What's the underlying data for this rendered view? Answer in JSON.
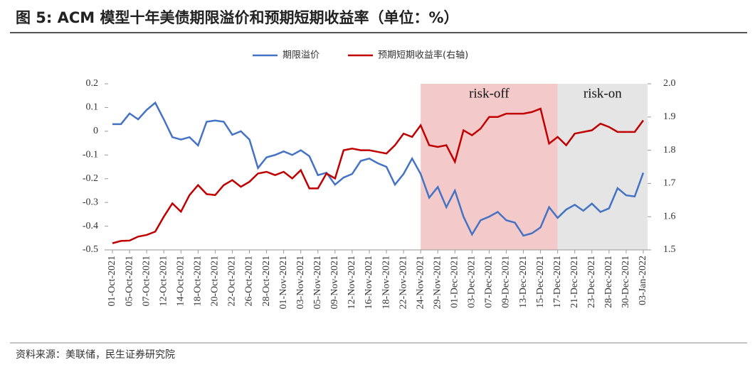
{
  "chart_data": {
    "type": "line",
    "title": "图 5: ACM 模型十年美债期限溢价和预期短期收益率（单位：%）",
    "source": "资料来源：美联储，民生证券研究院",
    "categories": [
      "01-Oct-2021",
      null,
      "05-Oct-2021",
      null,
      "07-Oct-2021",
      null,
      "12-Oct-2021",
      null,
      "14-Oct-2021",
      null,
      "18-Oct-2021",
      null,
      "20-Oct-2021",
      null,
      "22-Oct-2021",
      null,
      "26-Oct-2021",
      null,
      "28-Oct-2021",
      null,
      "01-Nov-2021",
      null,
      "03-Nov-2021",
      null,
      "05-Nov-2021",
      null,
      "09-Nov-2021",
      null,
      "12-Nov-2021",
      null,
      "16-Nov-2021",
      null,
      "18-Nov-2021",
      null,
      "22-Nov-2021",
      null,
      "24-Nov-2021",
      null,
      "29-Nov-2021",
      null,
      "01-Dec-2021",
      null,
      "03-Dec-2021",
      null,
      "07-Dec-2021",
      null,
      "09-Dec-2021",
      null,
      "13-Dec-2021",
      null,
      "15-Dec-2021",
      null,
      "17-Dec-2021",
      null,
      "21-Dec-2021",
      null,
      "23-Dec-2021",
      null,
      "28-Dec-2021",
      null,
      "30-Dec-2021",
      null,
      "03-Jan-2022"
    ],
    "series": [
      {
        "name": "期限溢价",
        "color": "#4472c4",
        "axis": "y",
        "values": [
          0.03,
          0.03,
          0.075,
          0.05,
          0.09,
          0.12,
          0.05,
          -0.025,
          -0.035,
          -0.025,
          -0.06,
          0.04,
          0.045,
          0.04,
          -0.015,
          0,
          -0.035,
          -0.155,
          -0.11,
          -0.1,
          -0.085,
          -0.1,
          -0.08,
          -0.105,
          -0.185,
          -0.175,
          -0.225,
          -0.195,
          -0.18,
          -0.125,
          -0.115,
          -0.135,
          -0.15,
          -0.225,
          -0.18,
          -0.115,
          -0.18,
          -0.28,
          -0.235,
          -0.32,
          -0.25,
          -0.36,
          -0.435,
          -0.375,
          -0.36,
          -0.34,
          -0.375,
          -0.385,
          -0.44,
          -0.43,
          -0.405,
          -0.32,
          -0.365,
          -0.33,
          -0.31,
          -0.335,
          -0.305,
          -0.34,
          -0.325,
          -0.24,
          -0.27,
          -0.275,
          -0.175
        ]
      },
      {
        "name": "预期短期收益率(右轴)",
        "color": "#c00000",
        "axis": "y2",
        "values": [
          1.52,
          1.527,
          1.528,
          1.54,
          1.545,
          1.555,
          1.6,
          1.64,
          1.615,
          1.665,
          1.695,
          1.668,
          1.665,
          1.695,
          1.71,
          1.69,
          1.705,
          1.73,
          1.735,
          1.725,
          1.735,
          1.715,
          1.74,
          1.685,
          1.685,
          1.73,
          1.715,
          1.8,
          1.805,
          1.8,
          1.8,
          1.795,
          1.79,
          1.815,
          1.85,
          1.84,
          1.875,
          1.815,
          1.81,
          1.815,
          1.765,
          1.86,
          1.845,
          1.865,
          1.9,
          1.9,
          1.91,
          1.91,
          1.91,
          1.915,
          1.925,
          1.82,
          1.84,
          1.815,
          1.85,
          1.855,
          1.86,
          1.88,
          1.87,
          1.855,
          1.855,
          1.855,
          1.89
        ]
      }
    ],
    "regions": [
      {
        "label": "risk-off",
        "start": "24-Nov-2021",
        "end": "17-Dec-2021",
        "color": "#f4c9c9"
      },
      {
        "label": "risk-on",
        "start": "17-Dec-2021",
        "end": "03-Jan-2022",
        "color": "#e5e5e5"
      }
    ],
    "ylim": [
      -0.5,
      0.2
    ],
    "yticks": [
      -0.5,
      -0.4,
      -0.3,
      -0.2,
      -0.1,
      0,
      0.1,
      0.2
    ],
    "y2lim": [
      1.5,
      2.0
    ],
    "y2ticks": [
      1.5,
      1.6,
      1.7,
      1.8,
      1.9,
      {
        "value": 2.0,
        "label": "2.0"
      }
    ],
    "legend": "top"
  }
}
